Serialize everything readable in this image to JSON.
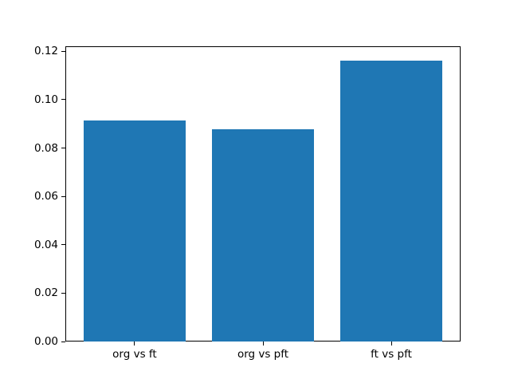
{
  "figure": {
    "background_color": "#ffffff",
    "title": ""
  },
  "chart_data": {
    "type": "bar",
    "categories": [
      "org vs ft",
      "org vs pft",
      "ft vs pft"
    ],
    "values": [
      0.0915,
      0.0878,
      0.1163
    ],
    "title": "",
    "xlabel": "",
    "ylabel": "",
    "ylim": [
      0,
      0.1221
    ],
    "xlim": [
      -0.54,
      2.54
    ],
    "bar_width": 0.8,
    "yticks": [
      0.0,
      0.02,
      0.04,
      0.06,
      0.08,
      0.1,
      0.12
    ],
    "ytick_labels": [
      "0.00",
      "0.02",
      "0.04",
      "0.06",
      "0.08",
      "0.10",
      "0.12"
    ],
    "bar_color": "#1f77b4",
    "spine_color": "#000000",
    "tick_color": "#000000",
    "text_color": "#000000",
    "grid": false,
    "legend": null
  }
}
